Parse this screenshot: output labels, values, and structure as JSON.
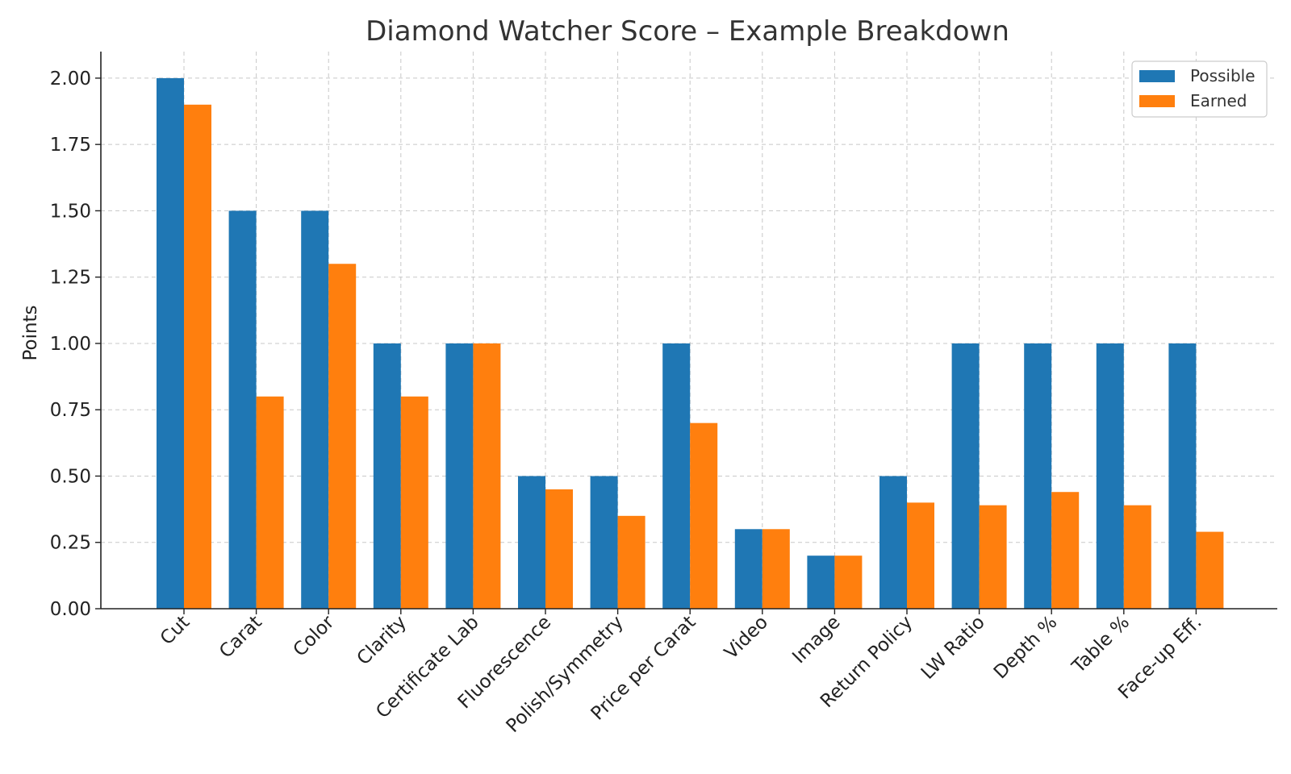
{
  "chart_data": {
    "type": "bar",
    "title": "Diamond Watcher Score – Example Breakdown",
    "xlabel": "",
    "ylabel": "Points",
    "ylim": [
      0,
      2.1
    ],
    "yticks": [
      "0.00",
      "0.25",
      "0.50",
      "0.75",
      "1.00",
      "1.25",
      "1.50",
      "1.75",
      "2.00"
    ],
    "categories": [
      "Cut",
      "Carat",
      "Color",
      "Clarity",
      "Certificate Lab",
      "Fluorescence",
      "Polish/Symmetry",
      "Price per Carat",
      "Video",
      "Image",
      "Return Policy",
      "LW Ratio",
      "Depth %",
      "Table %",
      "Face-up Eff."
    ],
    "series": [
      {
        "name": "Possible",
        "color": "#1f77b4",
        "values": [
          2.0,
          1.5,
          1.5,
          1.0,
          1.0,
          0.5,
          0.5,
          1.0,
          0.3,
          0.2,
          0.5,
          1.0,
          1.0,
          1.0,
          1.0
        ]
      },
      {
        "name": "Earned",
        "color": "#ff7f0e",
        "values": [
          1.9,
          0.8,
          1.3,
          0.8,
          1.0,
          0.45,
          0.35,
          0.7,
          0.3,
          0.2,
          0.4,
          0.39,
          0.44,
          0.39,
          0.29
        ]
      }
    ],
    "grid": true,
    "legend_position": "top-right"
  }
}
